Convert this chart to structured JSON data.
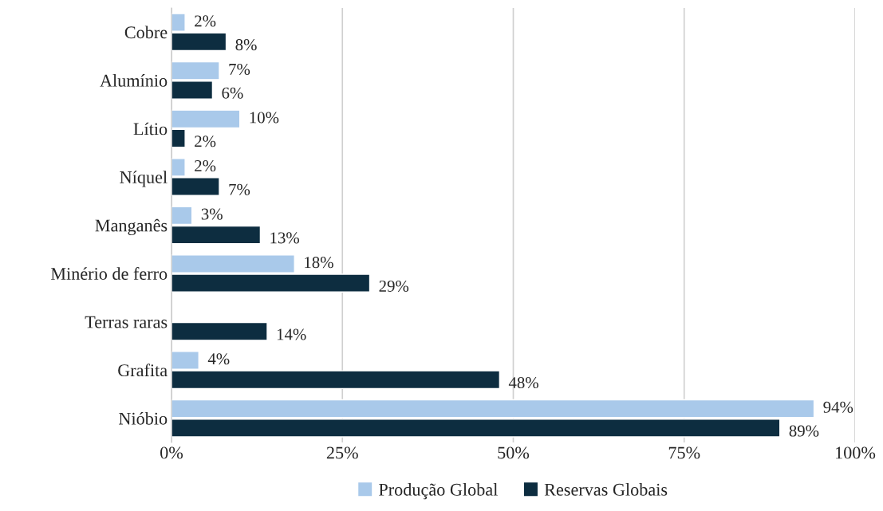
{
  "chart_data": {
    "type": "bar",
    "orientation": "horizontal",
    "categories": [
      "Cobre",
      "Alumínio",
      "Lítio",
      "Níquel",
      "Manganês",
      "Minério de ferro",
      "Terras raras",
      "Grafita",
      "Nióbio"
    ],
    "series": [
      {
        "name": "Produção Global",
        "color": "#a9c9ea",
        "values": [
          2,
          7,
          10,
          2,
          3,
          18,
          null,
          4,
          94
        ],
        "value_labels": [
          "2%",
          "7%",
          "10%",
          "2%",
          "3%",
          "18%",
          null,
          "4%",
          "94%"
        ]
      },
      {
        "name": "Reservas Globais",
        "color": "#0d2d40",
        "values": [
          8,
          6,
          2,
          7,
          13,
          29,
          14,
          48,
          89
        ],
        "value_labels": [
          "8%",
          "6%",
          "2%",
          "7%",
          "13%",
          "29%",
          "14%",
          "48%",
          "89%"
        ]
      }
    ],
    "xlim": [
      0,
      100
    ],
    "xticks": [
      {
        "value": 0,
        "label": "0%"
      },
      {
        "value": 25,
        "label": "25%"
      },
      {
        "value": 50,
        "label": "50%"
      },
      {
        "value": 75,
        "label": "75%"
      },
      {
        "value": 100,
        "label": "100%"
      }
    ],
    "grid": "x",
    "legend": "bottom"
  }
}
